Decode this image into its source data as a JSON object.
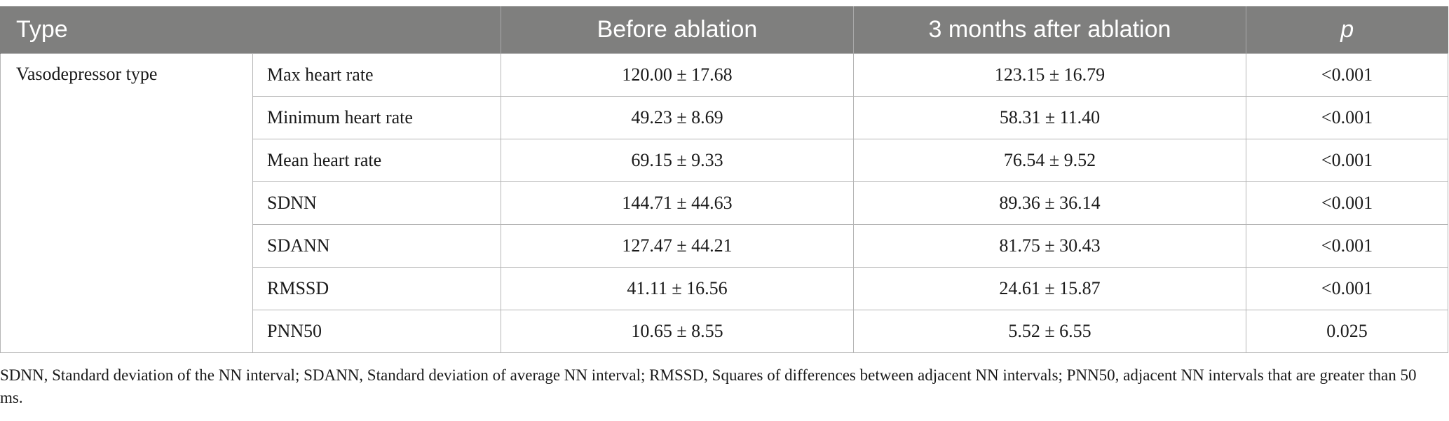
{
  "table": {
    "headers": {
      "type": "Type",
      "before": "Before ablation",
      "after": "3 months after ablation",
      "p": "p"
    },
    "group": "Vasodepressor type",
    "rows": [
      {
        "label": "Max heart rate",
        "before": "120.00 ± 17.68",
        "after": "123.15 ± 16.79",
        "p": "<0.001"
      },
      {
        "label": "Minimum heart rate",
        "before": "49.23 ± 8.69",
        "after": "58.31 ± 11.40",
        "p": "<0.001"
      },
      {
        "label": "Mean heart rate",
        "before": "69.15 ± 9.33",
        "after": "76.54 ± 9.52",
        "p": "<0.001"
      },
      {
        "label": "SDNN",
        "before": "144.71 ± 44.63",
        "after": "89.36 ± 36.14",
        "p": "<0.001"
      },
      {
        "label": "SDANN",
        "before": "127.47 ± 44.21",
        "after": "81.75 ± 30.43",
        "p": "<0.001"
      },
      {
        "label": "RMSSD",
        "before": "41.11 ± 16.56",
        "after": "24.61 ± 15.87",
        "p": "<0.001"
      },
      {
        "label": "PNN50",
        "before": "10.65 ± 8.55",
        "after": "5.52 ± 6.55",
        "p": "0.025"
      }
    ]
  },
  "footnote": "SDNN, Standard deviation of the NN interval; SDANN, Standard deviation of average NN interval; RMSSD, Squares of differences between adjacent NN intervals; PNN50, adjacent NN intervals that are greater than 50 ms."
}
